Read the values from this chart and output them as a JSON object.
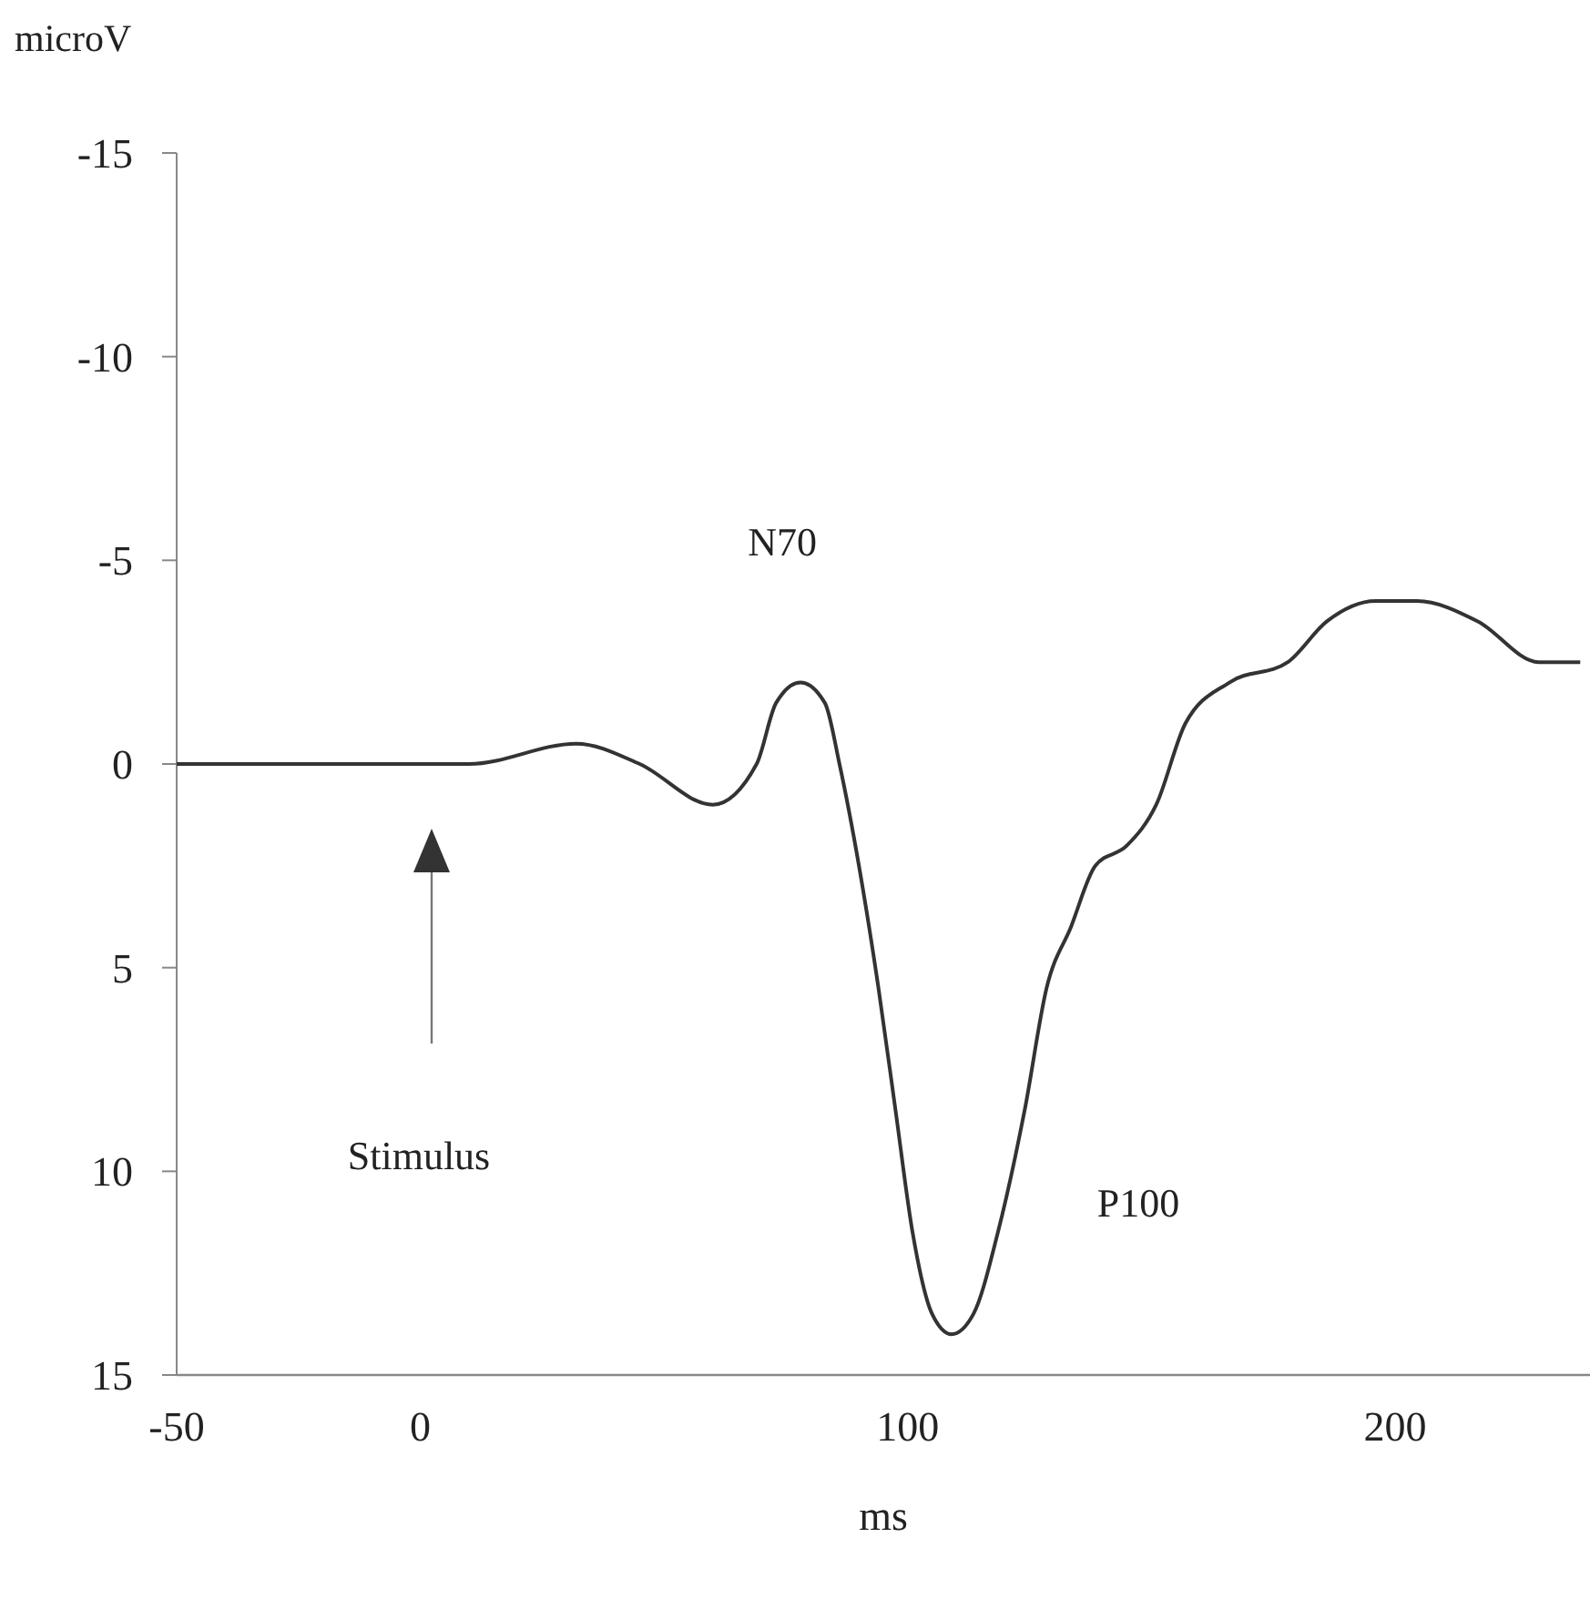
{
  "chart_data": {
    "type": "line",
    "xlabel": "ms",
    "ylabel": "microV",
    "xlim": [
      -50,
      240
    ],
    "xticks": [
      -50,
      0,
      100,
      200
    ],
    "ylim": [
      15,
      -15
    ],
    "yticks": [
      -15,
      -10,
      -5,
      0,
      5,
      10,
      15
    ],
    "grid": false,
    "marker": "none",
    "line_style": "solid",
    "series": [
      {
        "color": "#333333",
        "x": [
          -50,
          -10,
          10,
          32,
          45,
          60,
          69,
          73,
          78,
          83,
          86,
          90,
          94,
          97.5,
          101,
          105,
          109,
          113.5,
          118.5,
          124,
          128.5,
          133.5,
          138.5,
          145,
          151,
          157,
          166,
          178,
          186,
          196,
          204.5,
          217,
          229.5,
          238
        ],
        "values": [
          0,
          0,
          0,
          -0.5,
          0,
          1,
          0,
          -1.5,
          -2,
          -1.5,
          0,
          2.5,
          5.5,
          8.5,
          11.5,
          13.5,
          14,
          13.5,
          11.5,
          8.5,
          5.5,
          4,
          2.5,
          2,
          1,
          -1,
          -2,
          -2.5,
          -3.5,
          -4,
          -4,
          -3.5,
          -2.5,
          -2.5
        ]
      }
    ],
    "annotations": [
      {
        "text": "N70",
        "x": 78,
        "y": -2
      },
      "P100",
      "Stimulus"
    ]
  }
}
